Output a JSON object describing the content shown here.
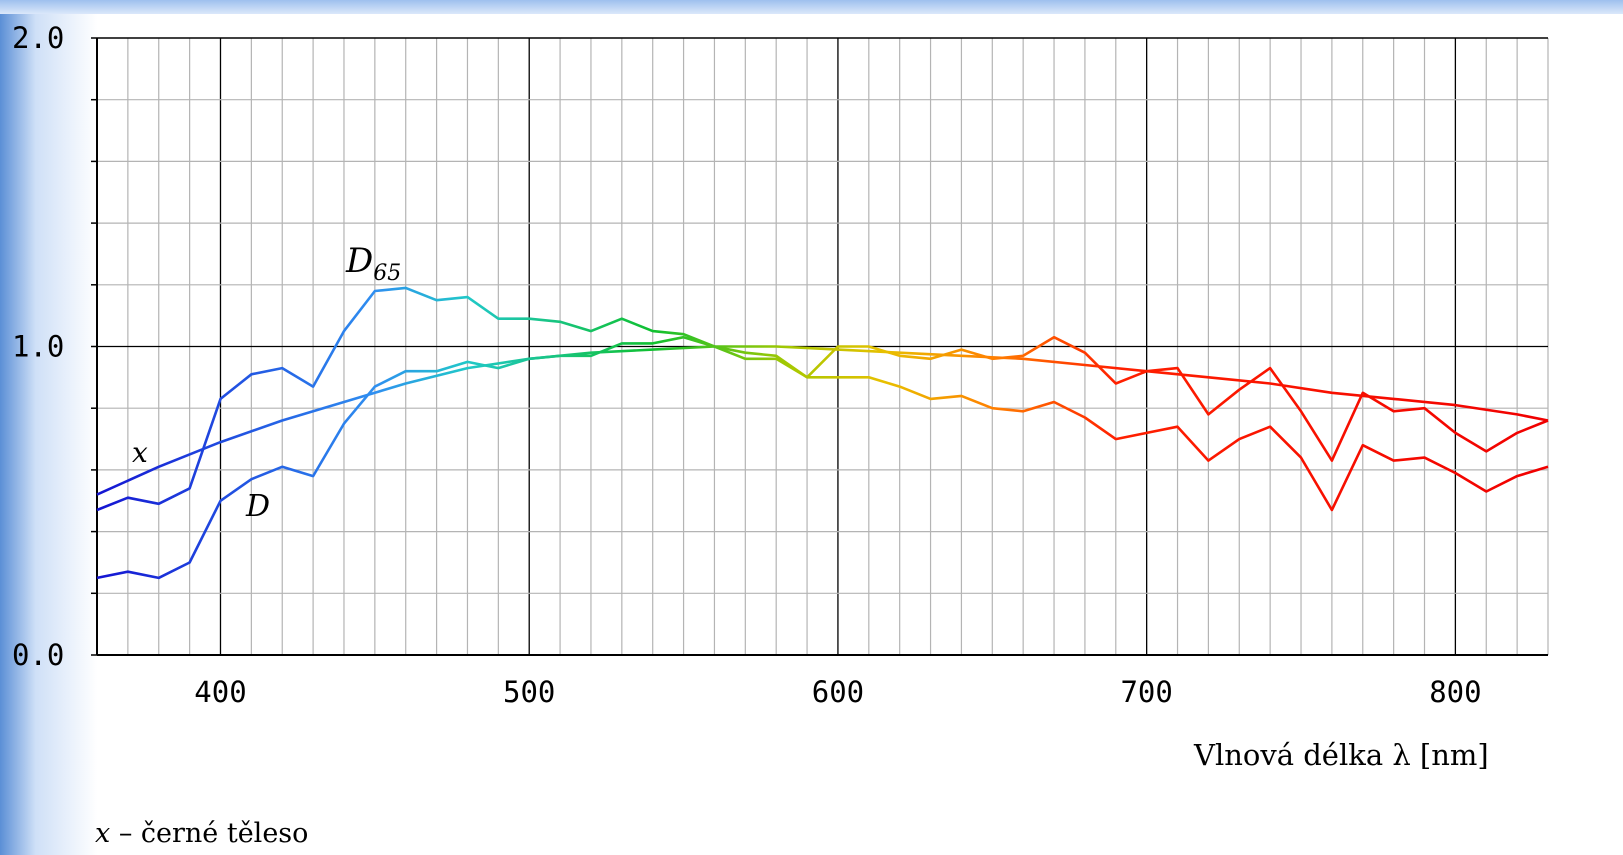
{
  "chart_data": {
    "type": "line",
    "xlabel": "Vlnová délka λ [nm]",
    "xlim": [
      360,
      830
    ],
    "ylim": [
      0,
      2
    ],
    "x_ticks": [
      400,
      500,
      600,
      700,
      800
    ],
    "y_ticks": [
      "0.0",
      "1.0",
      "2.0"
    ],
    "grid": true,
    "gradient_stops": [
      {
        "x": 360,
        "color": "#1414d2"
      },
      {
        "x": 450,
        "color": "#2f8ff0"
      },
      {
        "x": 480,
        "color": "#20c8c8"
      },
      {
        "x": 540,
        "color": "#10c030"
      },
      {
        "x": 585,
        "color": "#a8c800"
      },
      {
        "x": 615,
        "color": "#e8c000"
      },
      {
        "x": 650,
        "color": "#ff8000"
      },
      {
        "x": 690,
        "color": "#ff2000"
      },
      {
        "x": 830,
        "color": "#f00000"
      }
    ],
    "series": [
      {
        "name": "D65",
        "label": "D",
        "label_sub": "65",
        "x": [
          360,
          370,
          380,
          390,
          400,
          410,
          420,
          430,
          440,
          450,
          460,
          470,
          480,
          490,
          500,
          510,
          520,
          530,
          540,
          550,
          560,
          570,
          580,
          590,
          600,
          610,
          620,
          630,
          640,
          650,
          660,
          670,
          680,
          690,
          700,
          710,
          720,
          730,
          740,
          750,
          760,
          770,
          780,
          790,
          800,
          810,
          820,
          830
        ],
        "y": [
          0.47,
          0.51,
          0.49,
          0.54,
          0.83,
          0.91,
          0.93,
          0.87,
          1.05,
          1.18,
          1.19,
          1.15,
          1.16,
          1.09,
          1.09,
          1.08,
          1.05,
          1.09,
          1.05,
          1.04,
          1.0,
          0.96,
          0.96,
          0.9,
          1.0,
          1.0,
          0.97,
          0.96,
          0.99,
          0.96,
          0.97,
          1.03,
          0.98,
          0.88,
          0.92,
          0.93,
          0.78,
          0.86,
          0.93,
          0.79,
          0.63,
          0.85,
          0.79,
          0.8,
          0.72,
          0.66,
          0.72,
          0.76
        ]
      },
      {
        "name": "x",
        "label": "x",
        "x": [
          360,
          380,
          400,
          420,
          440,
          460,
          480,
          500,
          520,
          540,
          560,
          580,
          600,
          620,
          640,
          660,
          680,
          700,
          720,
          740,
          760,
          780,
          800,
          820,
          830
        ],
        "y": [
          0.52,
          0.61,
          0.69,
          0.76,
          0.82,
          0.88,
          0.93,
          0.96,
          0.98,
          0.99,
          1.0,
          1.0,
          0.99,
          0.98,
          0.97,
          0.96,
          0.94,
          0.92,
          0.9,
          0.88,
          0.85,
          0.83,
          0.81,
          0.78,
          0.76
        ]
      },
      {
        "name": "D",
        "label": "D",
        "x": [
          360,
          370,
          380,
          390,
          400,
          410,
          420,
          430,
          440,
          450,
          460,
          470,
          480,
          490,
          500,
          510,
          520,
          530,
          540,
          550,
          560,
          570,
          580,
          590,
          600,
          610,
          620,
          630,
          640,
          650,
          660,
          670,
          680,
          690,
          700,
          710,
          720,
          730,
          740,
          750,
          760,
          770,
          780,
          790,
          800,
          810,
          820,
          830
        ],
        "y": [
          0.25,
          0.27,
          0.25,
          0.3,
          0.5,
          0.57,
          0.61,
          0.58,
          0.75,
          0.87,
          0.92,
          0.92,
          0.95,
          0.93,
          0.96,
          0.97,
          0.97,
          1.01,
          1.01,
          1.03,
          1.0,
          0.98,
          0.97,
          0.9,
          0.9,
          0.9,
          0.87,
          0.83,
          0.84,
          0.8,
          0.79,
          0.82,
          0.77,
          0.7,
          0.72,
          0.74,
          0.63,
          0.7,
          0.74,
          0.64,
          0.47,
          0.68,
          0.63,
          0.64,
          0.59,
          0.53,
          0.58,
          0.61
        ]
      }
    ]
  },
  "footnote": {
    "symbol": "x",
    "text": " – černé těleso"
  }
}
